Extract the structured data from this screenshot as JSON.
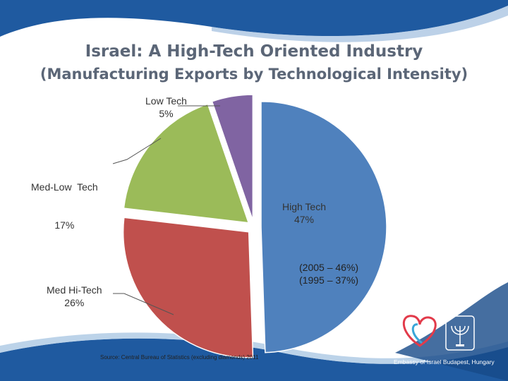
{
  "slide": {
    "title": "Israel: A High-Tech Oriented Industry",
    "subtitle": "(Manufacturing Exports by Technological Intensity)",
    "source": "Source: Central Bureau of Statistics (excluding diamonds) 2011",
    "embassy": "Embassy of Israel Budapest, Hungary",
    "notes": [
      "(2005 – 46%)",
      "(1995 – 37%)"
    ],
    "colors": {
      "background_wave": "#1f5aa0",
      "accent": "#b8cfe6"
    }
  },
  "chart_data": {
    "type": "pie",
    "title": "Israel: A High-Tech Oriented Industry",
    "subtitle": "(Manufacturing Exports by Technological Intensity)",
    "slices": [
      {
        "name": "High Tech",
        "value": 47,
        "label": "47%",
        "color": "#4f81bd"
      },
      {
        "name": "Med Hi-Tech",
        "value": 26,
        "label": "26%",
        "color": "#c0504d"
      },
      {
        "name": "Med-Low  Tech",
        "value": 17,
        "label": "17%",
        "color": "#9bbb59"
      },
      {
        "name": "Low Tech",
        "value": 5,
        "label": "5%",
        "color": "#8064a2"
      }
    ],
    "exploded": true,
    "legend": "none"
  }
}
